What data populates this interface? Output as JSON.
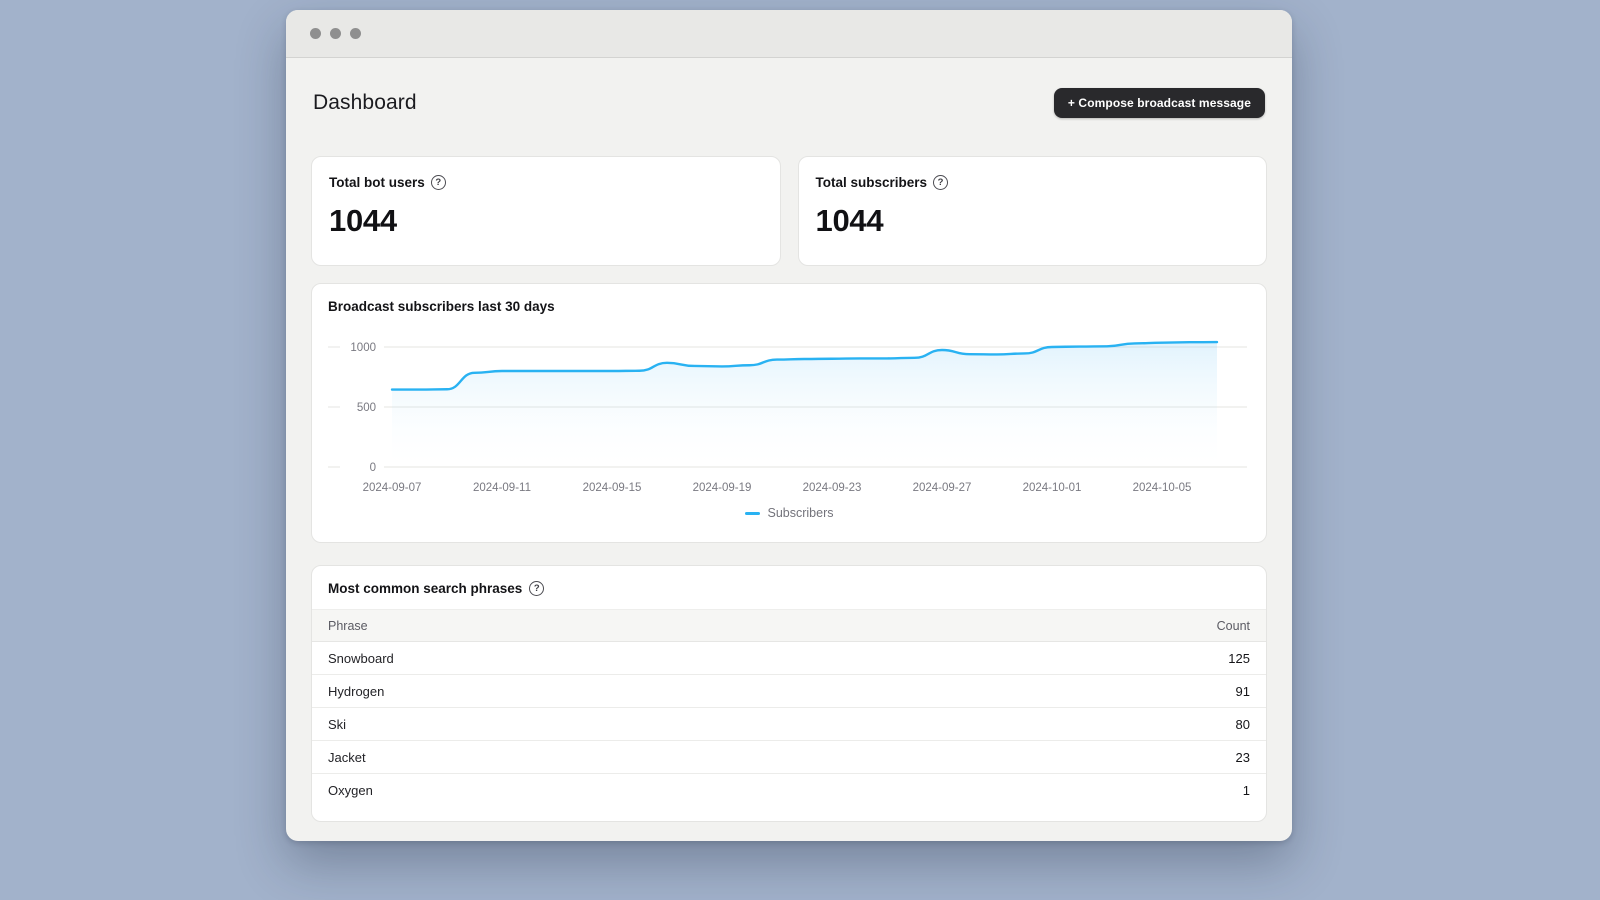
{
  "header": {
    "title": "Dashboard",
    "compose_button_label": "+ Compose broadcast message"
  },
  "stats": [
    {
      "label": "Total bot users",
      "help_icon": "?",
      "value": "1044"
    },
    {
      "label": "Total subscribers",
      "help_icon": "?",
      "value": "1044"
    }
  ],
  "chart_card": {
    "title": "Broadcast subscribers last 30 days"
  },
  "chart_data": {
    "type": "line",
    "area": true,
    "title": "Broadcast subscribers last 30 days",
    "x": [
      "2024-09-07",
      "2024-09-08",
      "2024-09-09",
      "2024-09-10",
      "2024-09-11",
      "2024-09-12",
      "2024-09-13",
      "2024-09-14",
      "2024-09-15",
      "2024-09-16",
      "2024-09-17",
      "2024-09-18",
      "2024-09-19",
      "2024-09-20",
      "2024-09-21",
      "2024-09-22",
      "2024-09-23",
      "2024-09-24",
      "2024-09-25",
      "2024-09-26",
      "2024-09-27",
      "2024-09-28",
      "2024-09-29",
      "2024-09-30",
      "2024-10-01",
      "2024-10-02",
      "2024-10-03",
      "2024-10-04",
      "2024-10-05",
      "2024-10-06",
      "2024-10-07"
    ],
    "series": [
      {
        "name": "Subscribers",
        "values": [
          645,
          645,
          648,
          785,
          800,
          800,
          800,
          800,
          800,
          802,
          868,
          842,
          838,
          848,
          895,
          900,
          902,
          905,
          905,
          910,
          975,
          940,
          938,
          946,
          1000,
          1004,
          1006,
          1030,
          1036,
          1040,
          1041
        ]
      }
    ],
    "ylim": [
      0,
      1100
    ],
    "yticks": [
      0,
      500,
      1000
    ],
    "xtick_every": 4,
    "grid": "horizontal",
    "legend_position": "bottom",
    "line_color": "#29b2f2",
    "area_top_color": "rgba(120,200,245,0.22)",
    "area_bottom_color": "rgba(240,250,255,0.0)",
    "grid_color": "#e9e9e7"
  },
  "table_card": {
    "title": "Most common search phrases",
    "help_icon": "?",
    "columns": [
      "Phrase",
      "Count"
    ],
    "rows": [
      [
        "Snowboard",
        "125"
      ],
      [
        "Hydrogen",
        "91"
      ],
      [
        "Ski",
        "80"
      ],
      [
        "Jacket",
        "23"
      ],
      [
        "Oxygen",
        "1"
      ]
    ]
  },
  "colors": {
    "page_background": "#a2b2cb",
    "window_background": "#f2f2f0",
    "titlebar_background": "#e8e8e6",
    "card_background": "#ffffff",
    "button_background": "#29292c",
    "accent_blue": "#29b2f2"
  }
}
